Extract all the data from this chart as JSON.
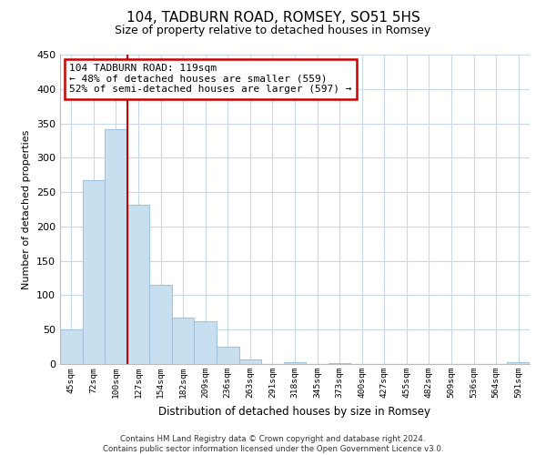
{
  "title": "104, TADBURN ROAD, ROMSEY, SO51 5HS",
  "subtitle": "Size of property relative to detached houses in Romsey",
  "xlabel": "Distribution of detached houses by size in Romsey",
  "ylabel": "Number of detached properties",
  "bar_labels": [
    "45sqm",
    "72sqm",
    "100sqm",
    "127sqm",
    "154sqm",
    "182sqm",
    "209sqm",
    "236sqm",
    "263sqm",
    "291sqm",
    "318sqm",
    "345sqm",
    "373sqm",
    "400sqm",
    "427sqm",
    "455sqm",
    "482sqm",
    "509sqm",
    "536sqm",
    "564sqm",
    "591sqm"
  ],
  "bar_values": [
    50,
    268,
    341,
    232,
    115,
    68,
    62,
    25,
    7,
    0,
    2,
    0,
    1,
    0,
    0,
    0,
    0,
    0,
    0,
    0,
    2
  ],
  "bar_color": "#c8dff0",
  "bar_edge_color": "#a0c4e0",
  "vline_color": "#cc0000",
  "annotation_title": "104 TADBURN ROAD: 119sqm",
  "annotation_line1": "← 48% of detached houses are smaller (559)",
  "annotation_line2": "52% of semi-detached houses are larger (597) →",
  "annotation_box_color": "#ffffff",
  "annotation_box_edge": "#cc0000",
  "ylim": [
    0,
    450
  ],
  "yticks": [
    0,
    50,
    100,
    150,
    200,
    250,
    300,
    350,
    400,
    450
  ],
  "footer_line1": "Contains HM Land Registry data © Crown copyright and database right 2024.",
  "footer_line2": "Contains public sector information licensed under the Open Government Licence v3.0.",
  "bg_color": "#ffffff",
  "grid_color": "#c8d8e8",
  "title_fontsize": 11,
  "subtitle_fontsize": 9
}
